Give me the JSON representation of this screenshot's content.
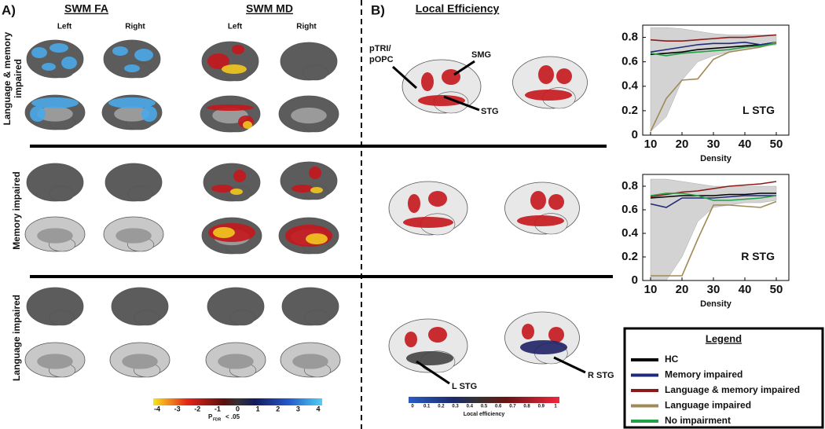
{
  "panel_a": {
    "label": "A)",
    "columns": [
      "SWM FA",
      "SWM MD"
    ],
    "hemispheres": [
      "Left",
      "Right",
      "Left",
      "Right"
    ],
    "rows": [
      [
        "Language & memory",
        "impaired"
      ],
      [
        "Memory impaired"
      ],
      [
        "Language impaired"
      ]
    ],
    "colorbar_ticks": [
      -4,
      -3,
      -2,
      -1,
      0,
      1,
      2,
      3,
      4
    ],
    "colorbar_label": "P",
    "colorbar_sub": "FDR",
    "colorbar_suffix": "< .05"
  },
  "panel_b": {
    "label": "B)",
    "title": "Local Efficiency",
    "regions": [
      "pTRI/",
      "pOPC",
      "SMG",
      "STG",
      "L STG",
      "R STG"
    ],
    "colorbar_ticks": [
      0,
      0.1,
      0.2,
      0.3,
      0.4,
      0.5,
      0.6,
      0.7,
      0.8,
      0.9,
      1
    ],
    "colorbar_label": "Local efficiency"
  },
  "legend": {
    "title": "Legend"
  },
  "chart_data": [
    {
      "type": "line",
      "annotation": "L STG",
      "x_label": "Density",
      "x": [
        10,
        15,
        20,
        25,
        30,
        35,
        40,
        45,
        50
      ],
      "band_color": "#d3d3d3",
      "band_lower": [
        0.03,
        0.15,
        0.45,
        0.6,
        0.65,
        0.68,
        0.7,
        0.72,
        0.74
      ],
      "band_upper": [
        0.88,
        0.88,
        0.87,
        0.85,
        0.83,
        0.82,
        0.82,
        0.82,
        0.82
      ],
      "series": [
        {
          "name": "HC",
          "color": "#000000",
          "values": [
            0.66,
            0.67,
            0.68,
            0.7,
            0.71,
            0.72,
            0.73,
            0.74,
            0.76
          ]
        },
        {
          "name": "Memory impaired",
          "color": "#1f2a78",
          "values": [
            0.68,
            0.7,
            0.72,
            0.74,
            0.75,
            0.75,
            0.76,
            0.74,
            0.76
          ]
        },
        {
          "name": "Language & memory impaired",
          "color": "#8b1a1a",
          "values": [
            0.78,
            0.77,
            0.77,
            0.78,
            0.79,
            0.8,
            0.8,
            0.81,
            0.82
          ]
        },
        {
          "name": "Language impaired",
          "color": "#a08a55",
          "values": [
            0.03,
            0.3,
            0.45,
            0.46,
            0.62,
            0.68,
            0.7,
            0.72,
            0.76
          ]
        },
        {
          "name": "No impairment",
          "color": "#22a045",
          "values": [
            0.67,
            0.65,
            0.67,
            0.68,
            0.69,
            0.7,
            0.72,
            0.73,
            0.75
          ]
        }
      ],
      "xlim": [
        7.5,
        54
      ],
      "xticks": [
        10,
        20,
        30,
        40,
        50
      ],
      "ylim": [
        0,
        0.9
      ],
      "yticks": [
        0,
        0.2,
        0.4,
        0.6,
        0.8
      ]
    },
    {
      "type": "line",
      "annotation": "R STG",
      "x_label": "Density",
      "x": [
        10,
        15,
        20,
        25,
        30,
        35,
        40,
        45,
        50
      ],
      "band_color": "#d3d3d3",
      "band_lower": [
        0,
        0,
        0.2,
        0.5,
        0.62,
        0.64,
        0.66,
        0.66,
        0.68
      ],
      "band_upper": [
        0.86,
        0.86,
        0.84,
        0.82,
        0.8,
        0.8,
        0.8,
        0.8,
        0.8
      ],
      "series": [
        {
          "name": "HC",
          "color": "#000000",
          "values": [
            0.7,
            0.71,
            0.72,
            0.72,
            0.72,
            0.73,
            0.73,
            0.74,
            0.74
          ]
        },
        {
          "name": "Memory impaired",
          "color": "#1f2a78",
          "values": [
            0.65,
            0.62,
            0.7,
            0.7,
            0.7,
            0.71,
            0.72,
            0.72,
            0.72
          ]
        },
        {
          "name": "Language & memory impaired",
          "color": "#8b1a1a",
          "values": [
            0.71,
            0.73,
            0.75,
            0.76,
            0.78,
            0.8,
            0.81,
            0.82,
            0.84
          ]
        },
        {
          "name": "Language impaired",
          "color": "#a08a55",
          "values": [
            0.04,
            0.04,
            0.04,
            0.35,
            0.64,
            0.64,
            0.63,
            0.62,
            0.67
          ]
        },
        {
          "name": "No impairment",
          "color": "#22a045",
          "values": [
            0.72,
            0.74,
            0.74,
            0.72,
            0.68,
            0.68,
            0.69,
            0.7,
            0.72
          ]
        }
      ],
      "xlim": [
        7.5,
        54
      ],
      "xticks": [
        10,
        20,
        30,
        40,
        50
      ],
      "ylim": [
        0,
        0.9
      ],
      "yticks": [
        0,
        0.2,
        0.4,
        0.6,
        0.8
      ]
    }
  ]
}
